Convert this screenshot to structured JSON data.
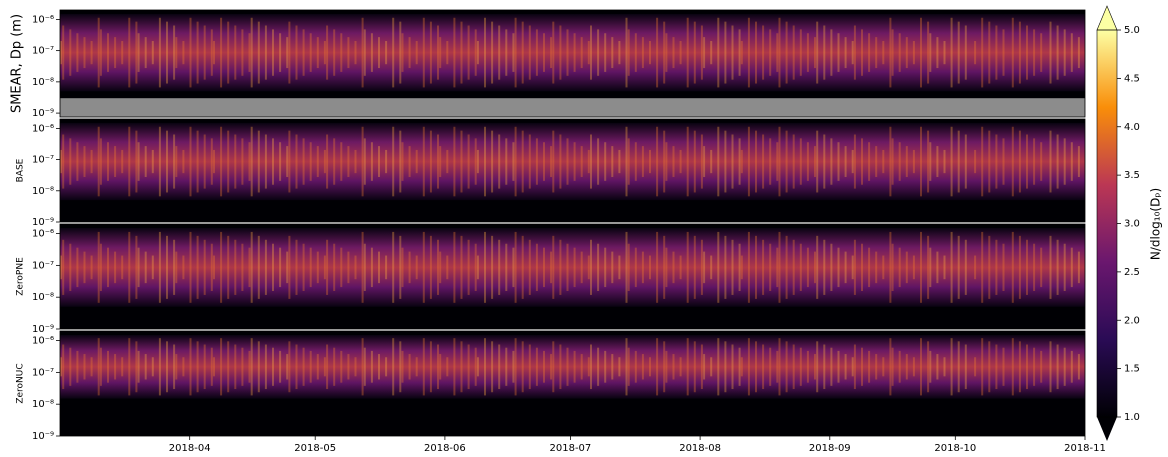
{
  "chart_data": [
    {
      "type": "heatmap",
      "ylabel": "SMEAR, Dp (m)",
      "yscale": "log",
      "ylim": [
        7.5e-10,
        2e-06
      ],
      "yticks": [
        {
          "value": 1e-09,
          "label": "10⁻⁹"
        },
        {
          "value": 1e-08,
          "label": "10⁻⁸"
        },
        {
          "value": 1e-07,
          "label": "10⁻⁷"
        },
        {
          "value": 1e-06,
          "label": "10⁻⁶"
        }
      ]
    },
    {
      "type": "heatmap",
      "ylabel": "BASE",
      "yscale": "log",
      "ylim": [
        1e-09,
        2e-06
      ],
      "yticks": [
        {
          "value": 1e-09,
          "label": "10⁻⁹"
        },
        {
          "value": 1e-08,
          "label": "10⁻⁸"
        },
        {
          "value": 1e-07,
          "label": "10⁻⁷"
        },
        {
          "value": 1e-06,
          "label": "10⁻⁶"
        }
      ]
    },
    {
      "type": "heatmap",
      "ylabel": "ZeroPNE",
      "yscale": "log",
      "ylim": [
        1e-09,
        2e-06
      ],
      "yticks": [
        {
          "value": 1e-09,
          "label": "10⁻⁹"
        },
        {
          "value": 1e-08,
          "label": "10⁻⁸"
        },
        {
          "value": 1e-07,
          "label": "10⁻⁷"
        },
        {
          "value": 1e-06,
          "label": "10⁻⁶"
        }
      ]
    },
    {
      "type": "heatmap",
      "ylabel": "ZeroNUC",
      "yscale": "log",
      "ylim": [
        1e-09,
        2e-06
      ],
      "yticks": [
        {
          "value": 1e-09,
          "label": "10⁻⁹"
        },
        {
          "value": 1e-08,
          "label": "10⁻⁸"
        },
        {
          "value": 1e-07,
          "label": "10⁻⁷"
        },
        {
          "value": 1e-06,
          "label": "10⁻⁶"
        }
      ],
      "xlim": [
        "2018-03",
        "2018-11"
      ],
      "xticks": [
        "2018-04",
        "2018-05",
        "2018-06",
        "2018-07",
        "2018-08",
        "2018-09",
        "2018-10",
        "2018-11"
      ]
    }
  ],
  "colorbar": {
    "label": "N/dlog₁₀(Dₚ)",
    "lim": [
      1,
      5
    ],
    "ticks": [
      {
        "value": 1,
        "label": "1.0"
      },
      {
        "value": 1.5,
        "label": "1.5"
      },
      {
        "value": 2,
        "label": "2.0"
      },
      {
        "value": 2.5,
        "label": "2.5"
      },
      {
        "value": 3,
        "label": "3.0"
      },
      {
        "value": 3.5,
        "label": "3.5"
      },
      {
        "value": 4,
        "label": "4.0"
      },
      {
        "value": 4.5,
        "label": "4.5"
      },
      {
        "value": 5,
        "label": "5.0"
      }
    ]
  }
}
